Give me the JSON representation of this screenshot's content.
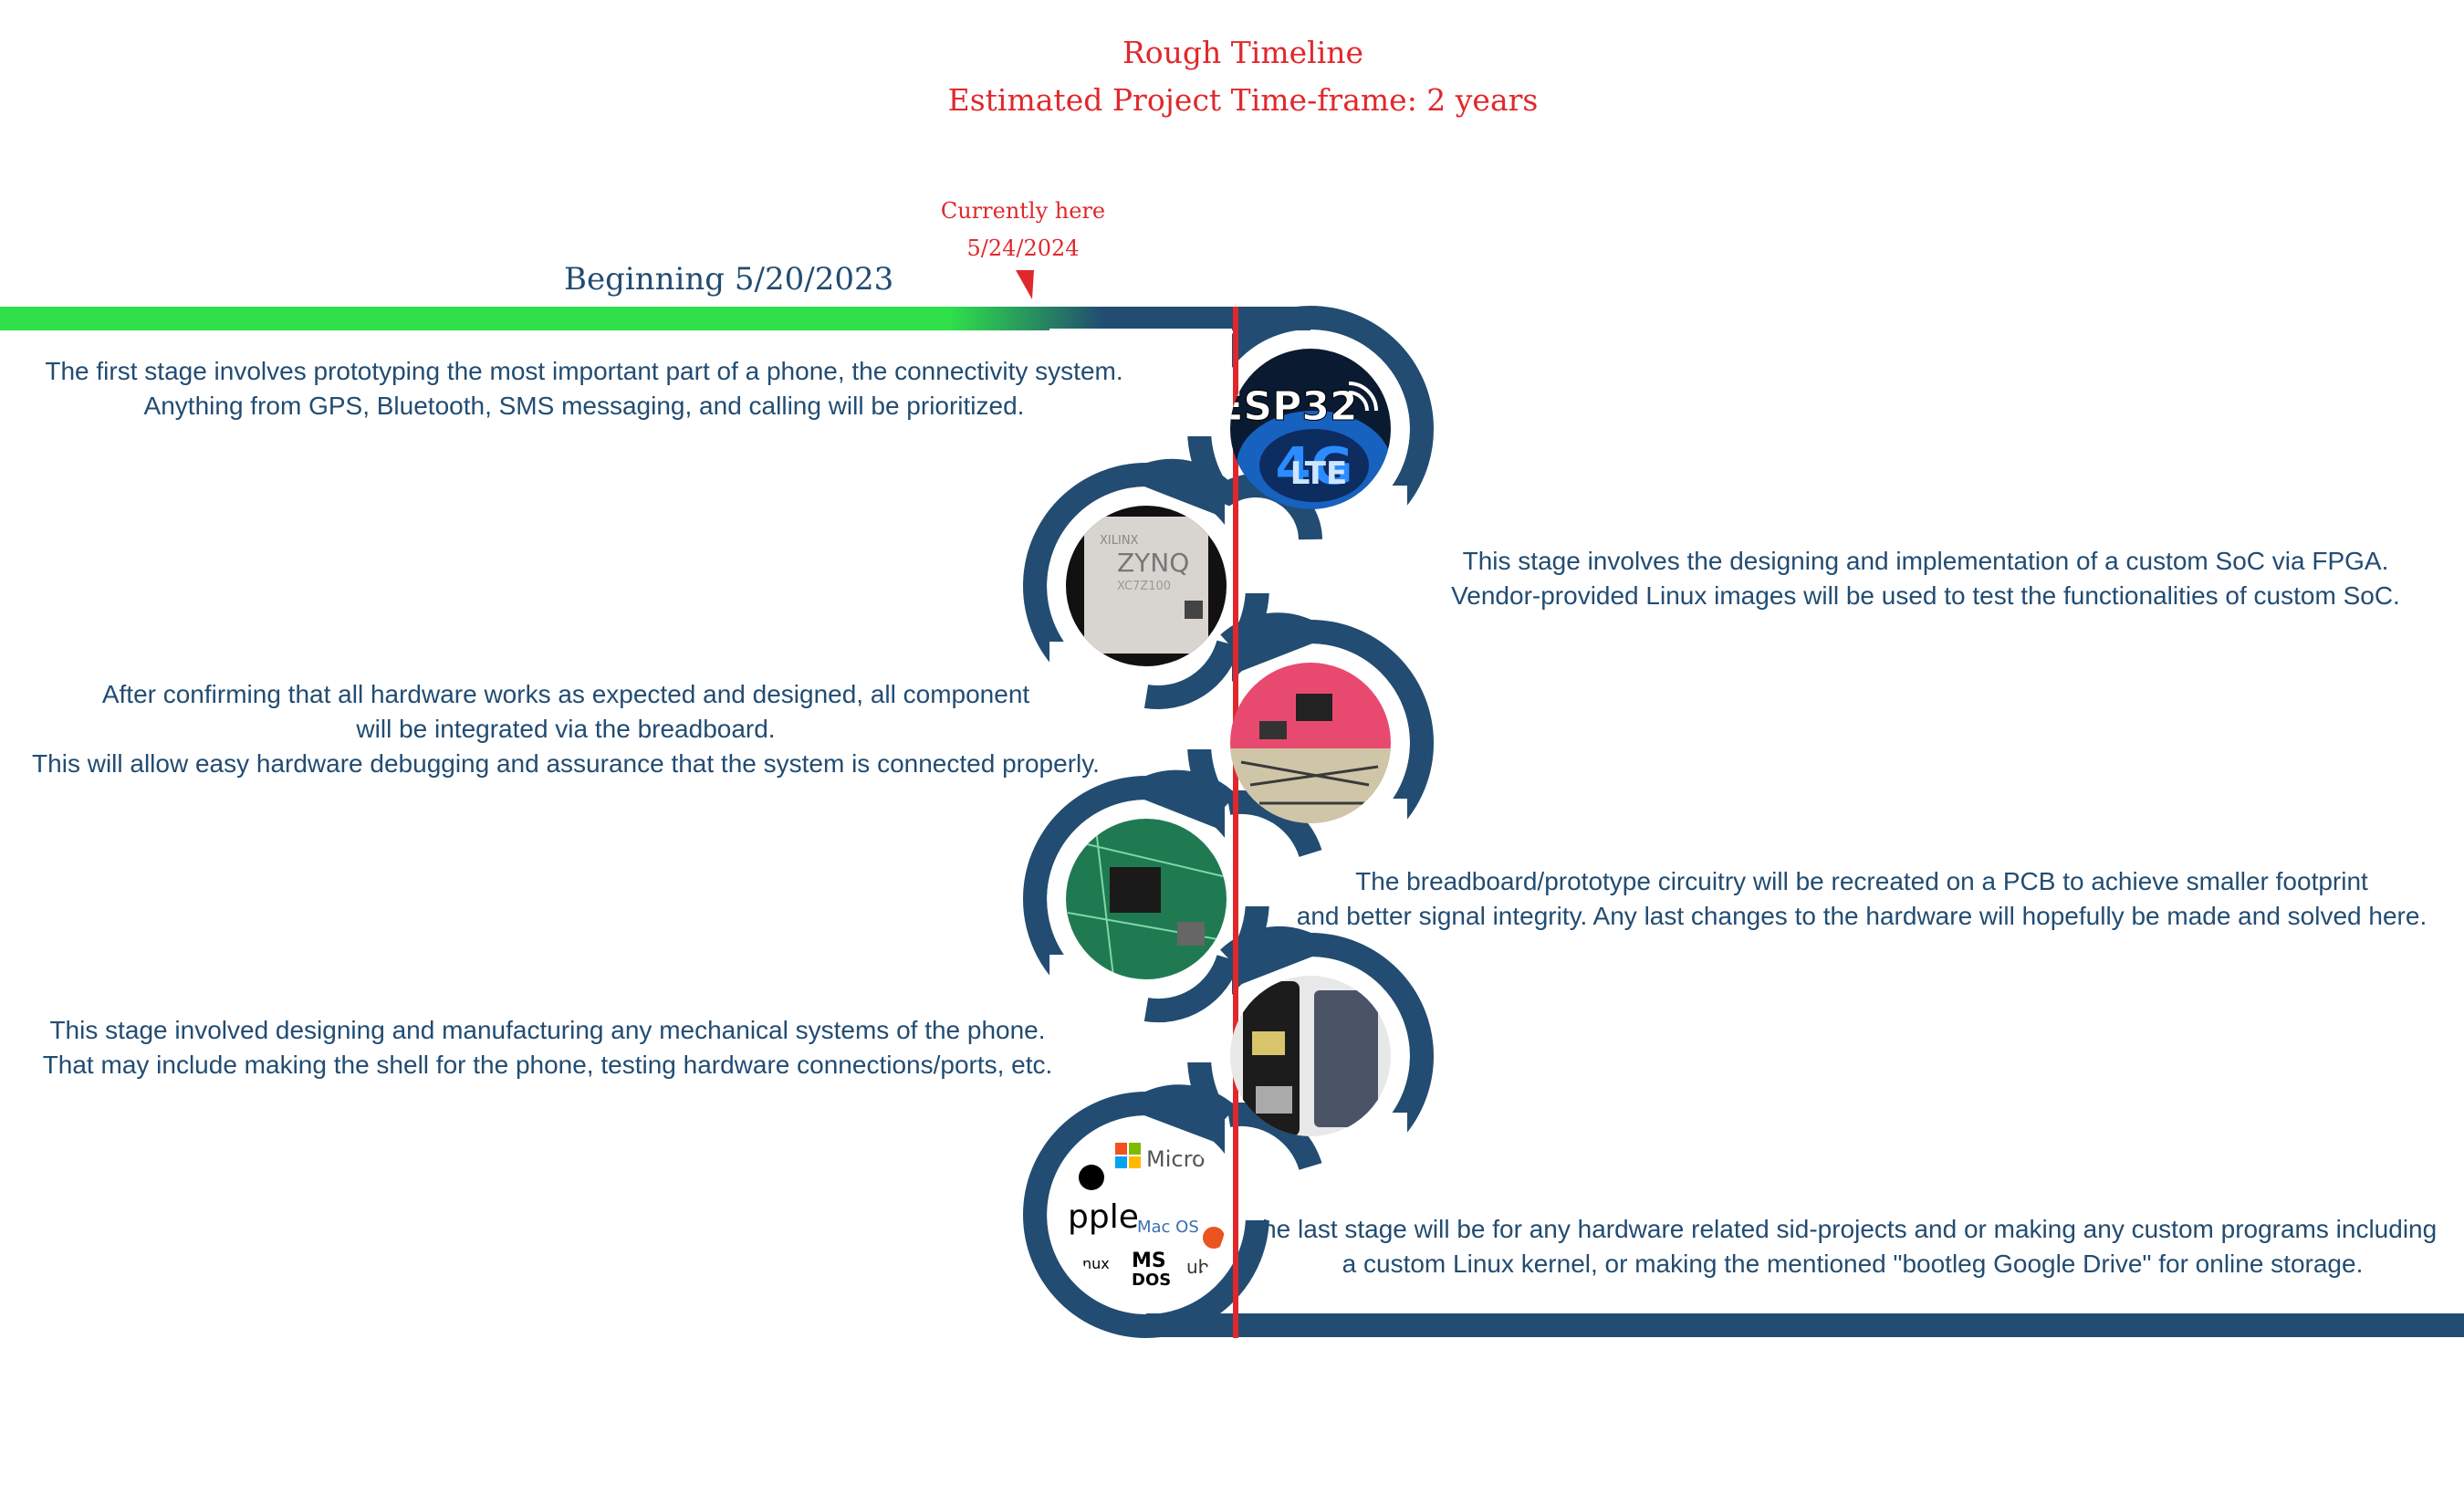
{
  "title": "Rough Timeline",
  "subtitle": "Estimated Project Time-frame: 2 years",
  "marker": {
    "label": "Currently here",
    "date": "5/24/2024"
  },
  "beginning": "Beginning 5/20/2023",
  "progress_fraction": 0.5,
  "colors": {
    "track": "#224c72",
    "progress": "#2fe04a",
    "accent": "#e0282c"
  },
  "stages": [
    {
      "image": "esp32-4g-lte-icon",
      "lines": [
        "The first stage involves prototyping the most important part of a phone, the connectivity system.",
        "Anything from GPS, Bluetooth, SMS messaging, and calling will be prioritized."
      ]
    },
    {
      "image": "xilinx-zynq-chip-icon",
      "lines": [
        "This stage involves the designing and implementation of a custom SoC via FPGA.",
        "Vendor-provided Linux images will be used to test the functionalities of custom SoC."
      ]
    },
    {
      "image": "breadboard-icon",
      "lines": [
        "After confirming that all hardware works as expected and designed, all component",
        "will be integrated via the breadboard.",
        "This will allow easy hardware debugging and assurance that the system is connected properly."
      ]
    },
    {
      "image": "pcb-icon",
      "lines": [
        "The breadboard/prototype circuitry will be recreated on a PCB to achieve smaller footprint",
        "and better signal integrity. Any last changes to the hardware will hopefully be made and solved here."
      ]
    },
    {
      "image": "phone-shell-icon",
      "lines": [
        "This stage involved designing and manufacturing any mechanical systems of the phone.",
        "That may include making the shell for the phone, testing hardware connections/ports, etc."
      ]
    },
    {
      "image": "os-logos-icon",
      "lines": [
        "The last stage will be for any hardware related sid-projects and or making any custom programs including",
        "a custom Linux kernel, or making the mentioned \"bootleg Google Drive\" for online storage."
      ]
    }
  ],
  "logo_text": {
    "esp": "ESP32",
    "lte1": "4G",
    "lte2": "LTE",
    "xilinx": "XILINX",
    "zynq": "ZYNQ",
    "zynq_part": "XC7Z100",
    "apple": "pple",
    "micro": "Micro",
    "macos": "Mac OS",
    "msdos1": "MS",
    "msdos2": "DOS",
    "linux": "nux",
    "ubuntu": "ub"
  }
}
